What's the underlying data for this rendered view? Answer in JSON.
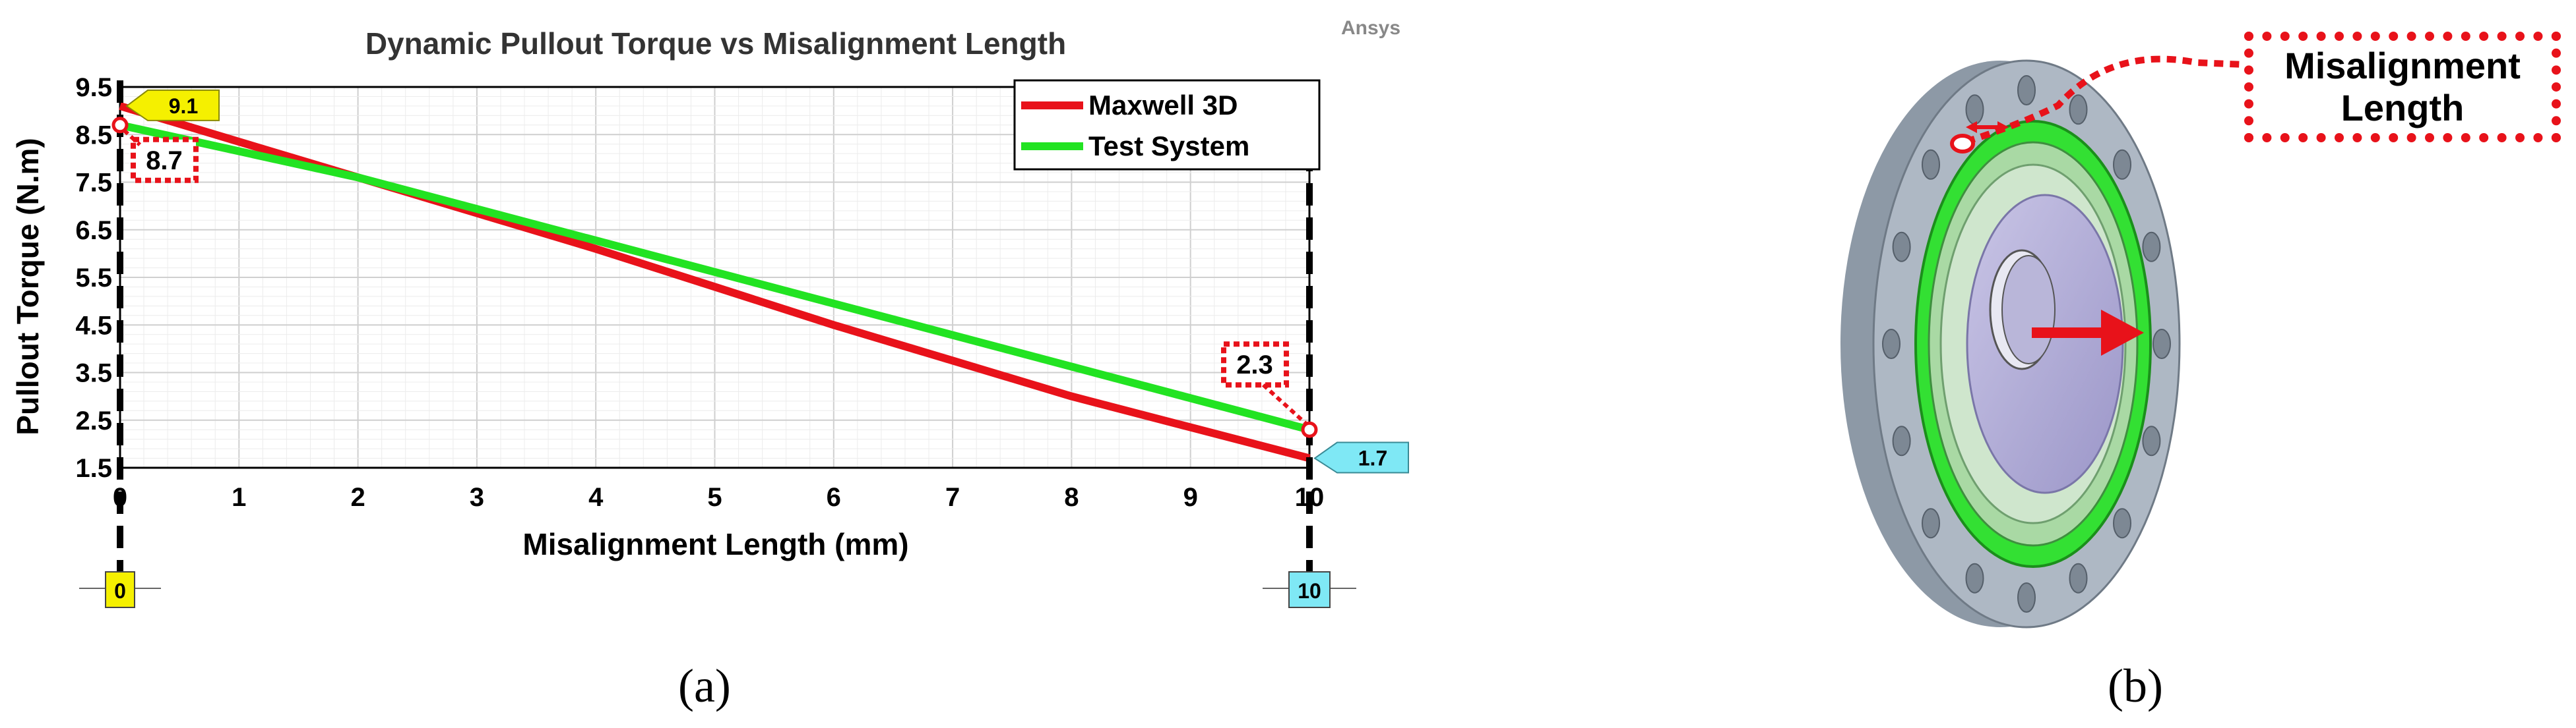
{
  "chart_data": {
    "type": "line",
    "title": "Dynamic Pullout Torque vs Misalignment Length",
    "brand": "Ansys",
    "xlabel": "Misalignment Length (mm)",
    "ylabel": "Pullout Torque (N.m)",
    "xlim": [
      0,
      10
    ],
    "ylim": [
      1.5,
      9.5
    ],
    "x_ticks": [
      "0",
      "1",
      "2",
      "3",
      "4",
      "5",
      "6",
      "7",
      "8",
      "9",
      "10"
    ],
    "y_ticks": [
      "1.5",
      "2.5",
      "3.5",
      "4.5",
      "5.5",
      "6.5",
      "7.5",
      "8.5",
      "9.5"
    ],
    "grid": true,
    "legend_position": "top-right",
    "series": [
      {
        "name": "Maxwell 3D",
        "color": "#e8121a",
        "x": [
          0,
          1,
          2,
          3,
          4,
          5,
          6,
          7,
          8,
          9,
          10
        ],
        "values": [
          9.1,
          8.35,
          7.6,
          6.85,
          6.1,
          5.3,
          4.5,
          3.75,
          3.0,
          2.35,
          1.7
        ]
      },
      {
        "name": "Test System",
        "color": "#22e322",
        "x": [
          0,
          2,
          10
        ],
        "values": [
          8.7,
          7.6,
          2.3
        ]
      }
    ],
    "markers": [
      {
        "label": "9.1",
        "x": 0,
        "y": 9.1,
        "style": "yellow-flag"
      },
      {
        "label": "1.7",
        "x": 10,
        "y": 1.7,
        "style": "cyan-flag"
      },
      {
        "label": "8.7",
        "x": 0,
        "y": 8.7,
        "style": "dotted-box"
      },
      {
        "label": "2.3",
        "x": 10,
        "y": 2.3,
        "style": "dotted-box"
      }
    ],
    "cursor_labels": [
      {
        "label": "0",
        "x": 0,
        "color": "#f5f000"
      },
      {
        "label": "10",
        "x": 10,
        "color": "#7fe8f5"
      }
    ]
  },
  "figure": {
    "caption_a": "(a)",
    "caption_b": "(b)",
    "callout_line1": "Misalignment",
    "callout_line2": "Length"
  }
}
